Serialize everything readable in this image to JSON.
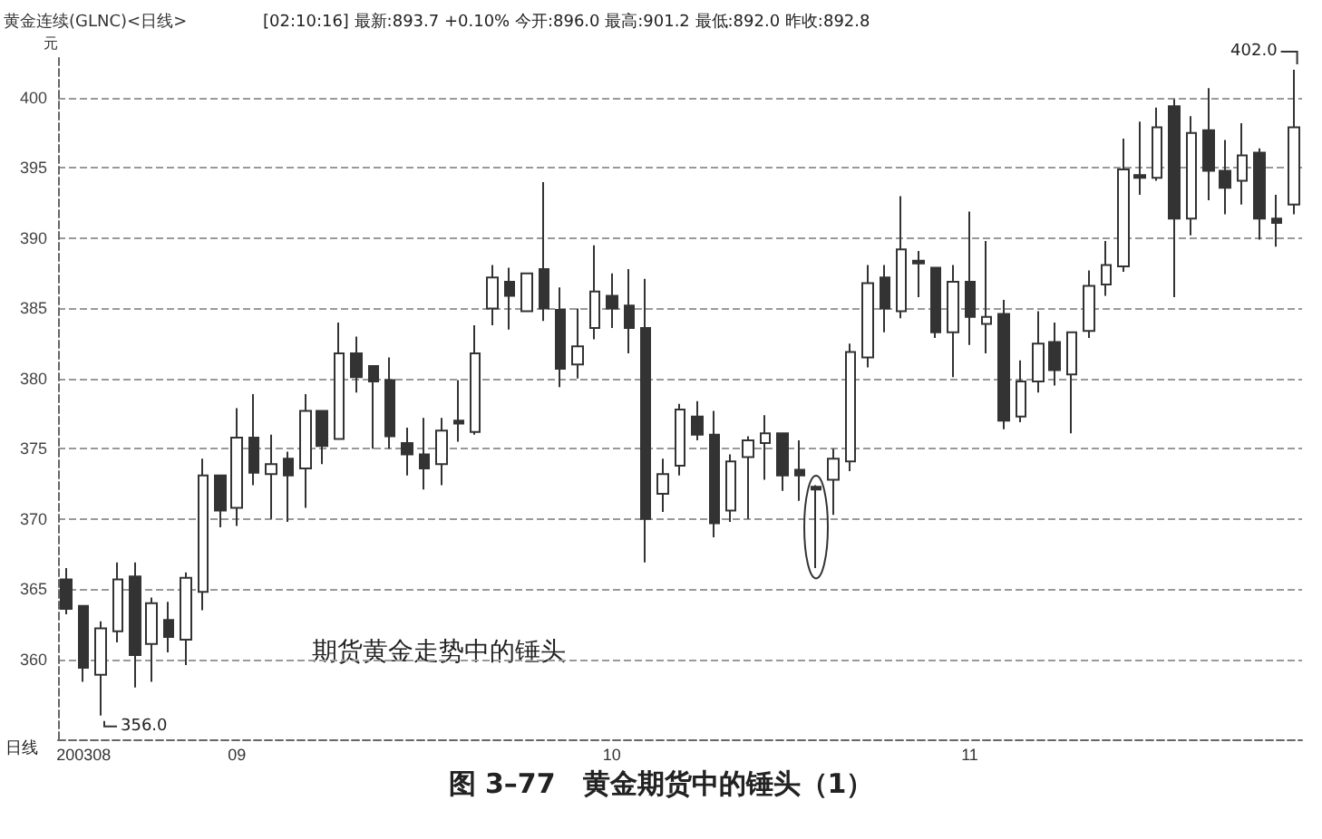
{
  "chart_data": {
    "type": "candlestick",
    "title": "图 3–77　黄金期货中的锤头（1）",
    "subtitle": "黄金连续(GLNC)<日线>",
    "ylabel": "元",
    "annotations": [
      "[02:10:16] 最新:893.7 +0.10% 今开:896.0 最高:901.2 最低:892.0 昨收:892.8",
      "期货黄金走势中的锤头",
      "日线",
      "402.0",
      "356.0"
    ],
    "categories": [
      null,
      "200308",
      null,
      null,
      null,
      null,
      null,
      null,
      null,
      null,
      "09",
      null,
      null,
      null,
      null,
      null,
      null,
      null,
      null,
      null,
      null,
      null,
      null,
      null,
      null,
      null,
      null,
      null,
      null,
      null,
      null,
      null,
      "10",
      null,
      null,
      null,
      null,
      null,
      null,
      null,
      null,
      null,
      null,
      null,
      null,
      null,
      null,
      null,
      null,
      null,
      null,
      null,
      null,
      "11",
      null,
      null,
      null,
      null,
      null,
      null,
      null,
      null,
      null,
      null,
      null,
      null,
      null,
      null,
      null,
      null,
      null,
      null,
      null
    ],
    "series": [
      {
        "color": "#333333",
        "ohlc": [
          [
            365.7,
            366.5,
            363.2,
            363.6
          ],
          [
            363.8,
            363.8,
            358.4,
            359.4
          ],
          [
            358.9,
            362.7,
            356.0,
            362.2
          ],
          [
            362.0,
            366.9,
            361.2,
            365.7
          ],
          [
            365.9,
            366.9,
            358.0,
            360.3
          ],
          [
            361.1,
            364.4,
            358.4,
            364.0
          ],
          [
            362.8,
            364.1,
            360.5,
            361.6
          ],
          [
            361.4,
            366.2,
            359.6,
            365.8
          ],
          [
            364.8,
            374.3,
            363.5,
            373.1
          ],
          [
            373.1,
            373.1,
            369.4,
            370.6
          ],
          [
            370.8,
            377.9,
            369.5,
            375.8
          ],
          [
            375.8,
            378.9,
            372.4,
            373.3
          ],
          [
            373.2,
            376.0,
            370.0,
            373.9
          ],
          [
            374.3,
            374.8,
            369.8,
            373.1
          ],
          [
            373.6,
            378.9,
            370.8,
            377.7
          ],
          [
            377.7,
            377.7,
            373.9,
            375.2
          ],
          [
            375.7,
            384.0,
            375.7,
            381.8
          ],
          [
            381.8,
            383.0,
            379.0,
            380.1
          ],
          [
            380.9,
            380.9,
            375.0,
            379.8
          ],
          [
            379.9,
            381.5,
            375.0,
            375.9
          ],
          [
            375.4,
            376.5,
            373.1,
            374.6
          ],
          [
            374.6,
            377.2,
            372.1,
            373.6
          ],
          [
            373.9,
            377.2,
            372.4,
            376.3
          ],
          [
            377.0,
            379.9,
            375.5,
            376.8
          ],
          [
            376.2,
            383.8,
            376.0,
            381.8
          ],
          [
            385.0,
            388.1,
            383.8,
            387.2
          ],
          [
            386.9,
            387.9,
            383.5,
            385.9
          ],
          [
            384.8,
            387.5,
            384.8,
            387.5
          ],
          [
            387.8,
            394.0,
            384.1,
            385.0
          ],
          [
            384.9,
            386.5,
            379.4,
            380.7
          ],
          [
            381.0,
            385.0,
            380.0,
            382.3
          ],
          [
            383.6,
            389.5,
            382.8,
            386.2
          ],
          [
            385.9,
            387.5,
            383.6,
            385.0
          ],
          [
            385.2,
            387.8,
            381.8,
            383.6
          ],
          [
            383.6,
            387.1,
            366.9,
            370.0
          ],
          [
            371.8,
            374.3,
            370.5,
            373.2
          ],
          [
            373.8,
            378.2,
            373.1,
            377.8
          ],
          [
            377.3,
            378.4,
            375.6,
            376.0
          ],
          [
            376.0,
            377.7,
            368.7,
            369.7
          ],
          [
            370.6,
            374.6,
            369.8,
            374.1
          ],
          [
            374.4,
            375.9,
            370.0,
            375.6
          ],
          [
            375.4,
            377.4,
            372.8,
            376.1
          ],
          [
            376.1,
            376.1,
            372.0,
            373.1
          ],
          [
            373.5,
            375.6,
            371.3,
            373.1
          ],
          [
            372.3,
            372.4,
            366.5,
            372.1
          ],
          [
            372.8,
            375.0,
            370.3,
            374.3
          ],
          [
            374.1,
            382.5,
            373.4,
            381.9
          ],
          [
            381.5,
            388.1,
            380.8,
            386.8
          ],
          [
            387.2,
            388.1,
            383.3,
            385.0
          ],
          [
            384.8,
            393.0,
            384.3,
            389.2
          ],
          [
            388.4,
            389.1,
            385.8,
            388.2
          ],
          [
            387.9,
            387.9,
            382.9,
            383.3
          ],
          [
            383.3,
            388.1,
            380.1,
            386.9
          ],
          [
            386.9,
            391.9,
            382.4,
            384.4
          ],
          [
            383.9,
            389.8,
            381.8,
            384.4
          ],
          [
            384.6,
            385.6,
            376.4,
            377.0
          ],
          [
            377.3,
            381.3,
            376.9,
            379.8
          ],
          [
            379.8,
            384.8,
            379.0,
            382.5
          ],
          [
            382.6,
            384.0,
            379.5,
            380.6
          ],
          [
            380.3,
            383.3,
            376.1,
            383.3
          ],
          [
            383.4,
            387.7,
            382.9,
            386.6
          ],
          [
            386.7,
            389.8,
            385.9,
            388.1
          ],
          [
            388.0,
            397.1,
            387.6,
            394.9
          ],
          [
            394.5,
            398.3,
            393.1,
            394.3
          ],
          [
            394.3,
            399.3,
            394.1,
            397.9
          ],
          [
            399.4,
            399.9,
            385.8,
            391.4
          ],
          [
            391.4,
            398.7,
            390.2,
            397.5
          ],
          [
            397.7,
            400.7,
            392.7,
            394.8
          ],
          [
            394.8,
            397.0,
            391.7,
            393.6
          ],
          [
            394.1,
            398.2,
            392.4,
            395.9
          ],
          [
            396.1,
            396.4,
            389.9,
            391.4
          ],
          [
            391.4,
            393.1,
            389.4,
            391.1
          ],
          [
            392.4,
            402.0,
            391.7,
            397.9
          ]
        ]
      }
    ],
    "ylim": [
      354.3,
      403.1
    ],
    "yticks": [
      360,
      365,
      370,
      375,
      380,
      385,
      390,
      395,
      400
    ],
    "grid": "y"
  }
}
